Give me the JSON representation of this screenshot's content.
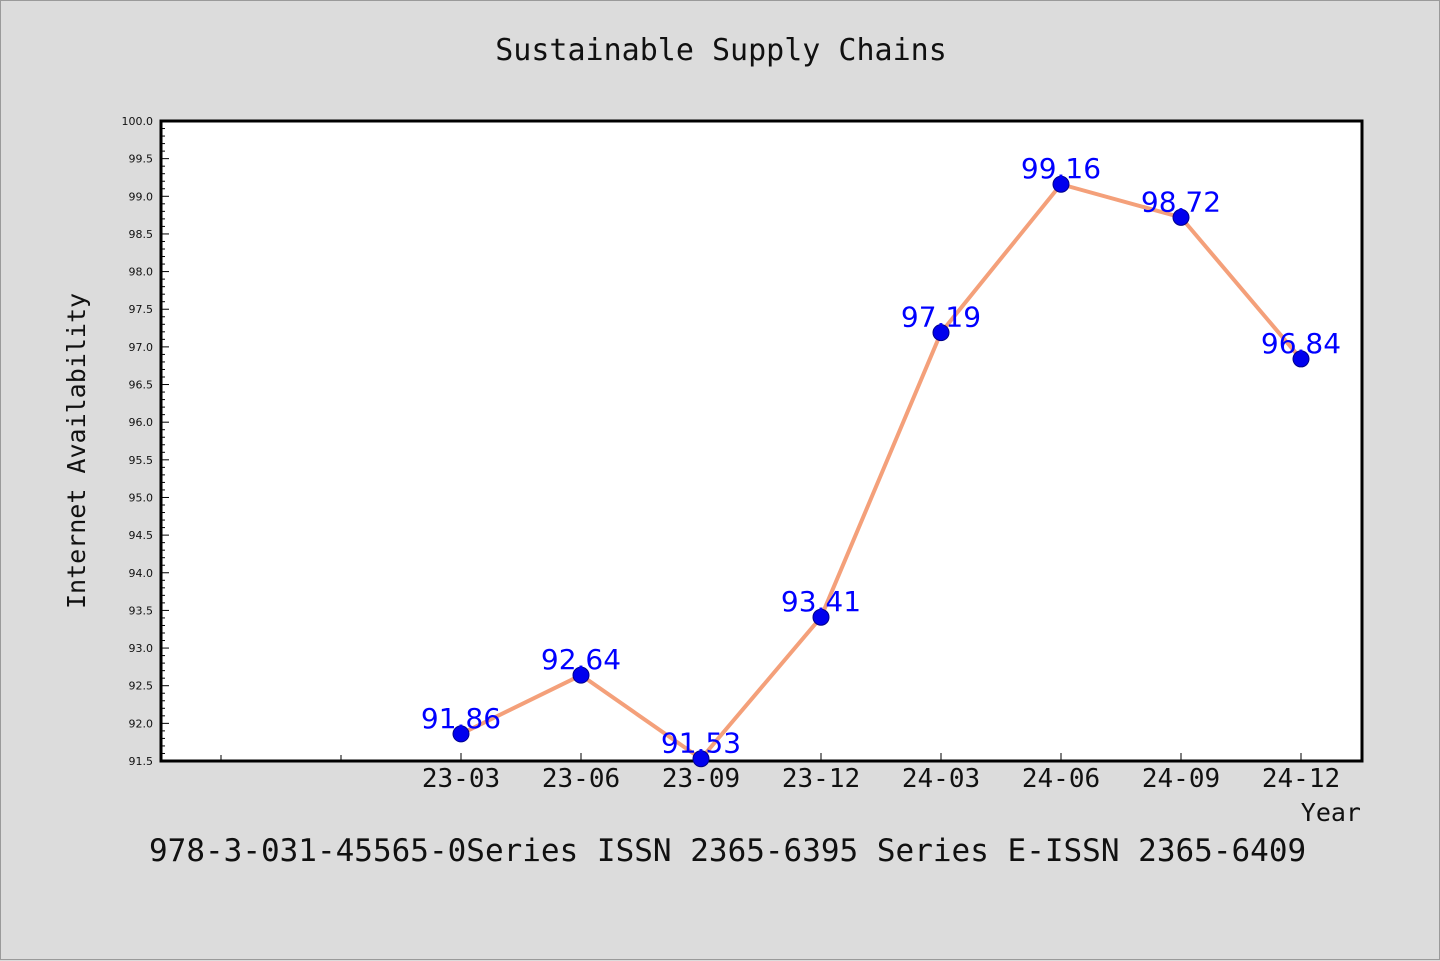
{
  "chart_data": {
    "type": "line",
    "title": "Sustainable Supply Chains",
    "xlabel": "Year",
    "ylabel": "Internet Availability",
    "categories": [
      "23-03",
      "23-06",
      "23-09",
      "23-12",
      "24-03",
      "24-06",
      "24-09",
      "24-12"
    ],
    "series": [
      {
        "values": [
          91.86,
          92.64,
          91.53,
          93.41,
          97.19,
          99.16,
          98.72,
          96.84
        ]
      }
    ],
    "data_labels": [
      "91.86",
      "92.64",
      "91.53",
      "93.41",
      "97.19",
      "99.16",
      "98.72",
      "96.84"
    ],
    "ylim": [
      91.5,
      100.0
    ],
    "y_ticks": [
      "91.5",
      "92.0",
      "92.5",
      "93.0",
      "93.5",
      "94.0",
      "94.5",
      "95.0",
      "95.5",
      "96.0",
      "96.5",
      "97.0",
      "97.5",
      "98.0",
      "98.5",
      "99.0",
      "99.5",
      "100.0"
    ],
    "grid": false,
    "legend": "none",
    "line_color": "#f4a07a",
    "marker_color": "#0000ee",
    "label_color": "#0000ff"
  },
  "footer": "978-3-031-45565-0Series ISSN 2365-6395 Series E-ISSN 2365-6409"
}
